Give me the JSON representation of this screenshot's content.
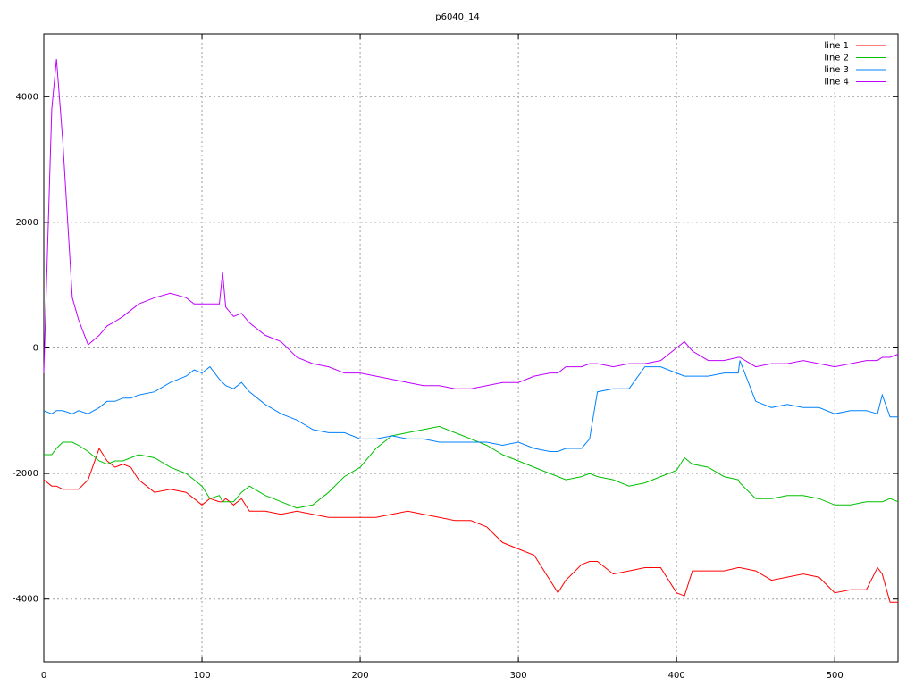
{
  "chart_data": {
    "type": "line",
    "title": "p6040_14",
    "x": [
      0,
      5,
      8,
      12,
      18,
      22,
      28,
      35,
      40,
      45,
      50,
      55,
      60,
      70,
      80,
      90,
      95,
      100,
      105,
      111,
      113,
      115,
      120,
      125,
      130,
      140,
      150,
      160,
      170,
      180,
      190,
      200,
      210,
      220,
      230,
      240,
      250,
      260,
      270,
      280,
      290,
      300,
      310,
      320,
      325,
      330,
      340,
      345,
      350,
      360,
      370,
      380,
      390,
      400,
      405,
      410,
      420,
      430,
      439,
      440,
      450,
      460,
      470,
      480,
      490,
      500,
      510,
      520,
      527,
      530,
      535,
      540
    ],
    "series": [
      {
        "name": "line 1",
        "color": "#ff0000",
        "values": [
          -2100,
          -2200,
          -2200,
          -2250,
          -2250,
          -2250,
          -2100,
          -1600,
          -1800,
          -1900,
          -1850,
          -1900,
          -2100,
          -2300,
          -2250,
          -2300,
          -2400,
          -2500,
          -2400,
          -2450,
          -2450,
          -2400,
          -2500,
          -2400,
          -2600,
          -2600,
          -2650,
          -2600,
          -2650,
          -2700,
          -2700,
          -2700,
          -2700,
          -2650,
          -2600,
          -2650,
          -2700,
          -2750,
          -2750,
          -2850,
          -3100,
          -3200,
          -3300,
          -3700,
          -3900,
          -3700,
          -3450,
          -3400,
          -3400,
          -3600,
          -3550,
          -3500,
          -3500,
          -3900,
          -3950,
          -3550,
          -3550,
          -3550,
          -3500,
          -3500,
          -3550,
          -3700,
          -3650,
          -3600,
          -3650,
          -3900,
          -3850,
          -3850,
          -3500,
          -3600,
          -4050,
          -4050
        ]
      },
      {
        "name": "line 2",
        "color": "#00c000",
        "values": [
          -1700,
          -1700,
          -1600,
          -1500,
          -1500,
          -1550,
          -1650,
          -1800,
          -1850,
          -1800,
          -1800,
          -1750,
          -1700,
          -1750,
          -1900,
          -2000,
          -2100,
          -2200,
          -2400,
          -2350,
          -2450,
          -2450,
          -2450,
          -2300,
          -2200,
          -2350,
          -2450,
          -2550,
          -2500,
          -2300,
          -2050,
          -1900,
          -1600,
          -1400,
          -1350,
          -1300,
          -1250,
          -1350,
          -1450,
          -1550,
          -1700,
          -1800,
          -1900,
          -2000,
          -2050,
          -2100,
          -2050,
          -2000,
          -2050,
          -2100,
          -2200,
          -2150,
          -2050,
          -1950,
          -1750,
          -1850,
          -1900,
          -2050,
          -2100,
          -2150,
          -2400,
          -2400,
          -2350,
          -2350,
          -2400,
          -2500,
          -2500,
          -2450,
          -2450,
          -2450,
          -2400,
          -2450
        ]
      },
      {
        "name": "line 3",
        "color": "#0080ff",
        "values": [
          -1000,
          -1050,
          -1000,
          -1000,
          -1050,
          -1000,
          -1050,
          -950,
          -850,
          -850,
          -800,
          -800,
          -750,
          -700,
          -550,
          -450,
          -350,
          -400,
          -300,
          -500,
          -550,
          -600,
          -650,
          -550,
          -700,
          -900,
          -1050,
          -1150,
          -1300,
          -1350,
          -1350,
          -1450,
          -1450,
          -1400,
          -1450,
          -1450,
          -1500,
          -1500,
          -1500,
          -1500,
          -1550,
          -1500,
          -1600,
          -1650,
          -1650,
          -1600,
          -1600,
          -1450,
          -700,
          -650,
          -650,
          -300,
          -300,
          -400,
          -450,
          -450,
          -450,
          -400,
          -400,
          -200,
          -850,
          -950,
          -900,
          -950,
          -950,
          -1050,
          -1000,
          -1000,
          -1050,
          -750,
          -1100,
          -1100
        ]
      },
      {
        "name": "line 4",
        "color": "#c000ff",
        "values": [
          -400,
          3800,
          4600,
          3300,
          800,
          450,
          50,
          200,
          350,
          420,
          500,
          600,
          700,
          800,
          870,
          800,
          700,
          700,
          700,
          700,
          1200,
          650,
          500,
          550,
          400,
          200,
          100,
          -150,
          -250,
          -300,
          -400,
          -400,
          -450,
          -500,
          -550,
          -600,
          -600,
          -650,
          -650,
          -600,
          -550,
          -550,
          -450,
          -400,
          -400,
          -300,
          -300,
          -250,
          -250,
          -300,
          -250,
          -250,
          -200,
          0,
          100,
          -50,
          -200,
          -200,
          -150,
          -150,
          -300,
          -250,
          -250,
          -200,
          -250,
          -300,
          -250,
          -200,
          -200,
          -150,
          -150,
          -100
        ]
      }
    ],
    "xlim": [
      0,
      540
    ],
    "ylim": [
      -5000,
      5000
    ],
    "xticks": [
      0,
      100,
      200,
      300,
      400,
      500
    ],
    "yticks": [
      -4000,
      -2000,
      0,
      2000,
      4000
    ],
    "grid": true,
    "legend": "top-right"
  }
}
